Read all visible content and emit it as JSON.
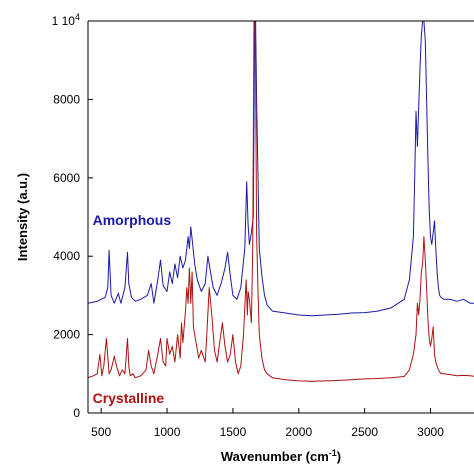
{
  "chart_data": {
    "type": "line",
    "title": "",
    "xlabel": "Wavenumber (cm",
    "xlabel_sup": "-1",
    "xlabel_close": ")",
    "ylabel": "Intensity (a.u.)",
    "xlim": [
      400,
      3330
    ],
    "ylim": [
      0,
      10000
    ],
    "grid": false,
    "legend": "none",
    "x_ticks": [
      {
        "value": 500,
        "label": "500"
      },
      {
        "value": 1000,
        "label": "1000"
      },
      {
        "value": 1500,
        "label": "1500"
      },
      {
        "value": 2000,
        "label": "2000"
      },
      {
        "value": 2500,
        "label": "2500"
      },
      {
        "value": 3000,
        "label": "3000"
      }
    ],
    "y_ticks": [
      {
        "value": 0,
        "label": "0"
      },
      {
        "value": 2000,
        "label": "2000"
      },
      {
        "value": 4000,
        "label": "4000"
      },
      {
        "value": 6000,
        "label": "6000"
      },
      {
        "value": 8000,
        "label": "8000"
      },
      {
        "value": 10000,
        "label": "1 10",
        "sup": "4"
      }
    ],
    "series": [
      {
        "name": "Amorphous",
        "color": "#1a1aa6",
        "label_pos": {
          "x": 450,
          "y": 4800
        },
        "x": [
          400,
          470,
          500,
          530,
          550,
          560,
          575,
          600,
          630,
          650,
          680,
          700,
          710,
          730,
          760,
          800,
          850,
          880,
          900,
          930,
          950,
          970,
          1000,
          1020,
          1040,
          1060,
          1080,
          1100,
          1120,
          1140,
          1160,
          1170,
          1180,
          1195,
          1210,
          1230,
          1260,
          1290,
          1310,
          1330,
          1350,
          1380,
          1410,
          1440,
          1460,
          1480,
          1500,
          1530,
          1560,
          1590,
          1605,
          1615,
          1625,
          1640,
          1655,
          1660,
          1665,
          1672,
          1680,
          1700,
          1720,
          1740,
          1760,
          1800,
          1900,
          2000,
          2100,
          2200,
          2300,
          2400,
          2500,
          2600,
          2700,
          2800,
          2840,
          2870,
          2880,
          2890,
          2900,
          2910,
          2920,
          2930,
          2940,
          2950,
          2960,
          2970,
          2980,
          2990,
          3000,
          3010,
          3020,
          3030,
          3040,
          3050,
          3060,
          3070,
          3080,
          3100,
          3150,
          3200,
          3250,
          3300,
          3330
        ],
        "y": [
          2800,
          2850,
          2900,
          2950,
          3200,
          4150,
          3000,
          2800,
          3050,
          2800,
          3200,
          4100,
          3300,
          2950,
          2850,
          2900,
          3000,
          3300,
          2800,
          3400,
          3900,
          3250,
          3100,
          3600,
          3300,
          3800,
          3450,
          4000,
          3700,
          3900,
          4500,
          4200,
          4750,
          4300,
          3800,
          3400,
          3100,
          3300,
          4000,
          3600,
          3200,
          3000,
          3300,
          3700,
          4100,
          3500,
          3000,
          2900,
          3200,
          4200,
          5900,
          4800,
          4300,
          4600,
          5000,
          7500,
          10000,
          10000,
          8000,
          4200,
          3500,
          3000,
          2750,
          2600,
          2550,
          2500,
          2480,
          2500,
          2520,
          2550,
          2560,
          2600,
          2680,
          2900,
          3400,
          4500,
          6000,
          7700,
          6800,
          7800,
          8800,
          9600,
          10000,
          10000,
          9500,
          8000,
          6500,
          5200,
          4500,
          4300,
          4600,
          4900,
          4200,
          3600,
          3200,
          3000,
          2950,
          2900,
          2900,
          2850,
          2900,
          2800,
          2800
        ]
      },
      {
        "name": "Crystalline",
        "color": "#b01010",
        "label_pos": {
          "x": 450,
          "y": 250
        },
        "x": [
          400,
          440,
          470,
          490,
          505,
          520,
          540,
          560,
          575,
          600,
          620,
          640,
          660,
          680,
          700,
          710,
          720,
          740,
          760,
          800,
          840,
          860,
          880,
          900,
          930,
          950,
          970,
          990,
          1000,
          1020,
          1040,
          1060,
          1080,
          1100,
          1110,
          1120,
          1140,
          1150,
          1160,
          1170,
          1180,
          1190,
          1200,
          1220,
          1240,
          1260,
          1290,
          1300,
          1320,
          1340,
          1360,
          1380,
          1400,
          1420,
          1440,
          1460,
          1480,
          1500,
          1520,
          1540,
          1560,
          1580,
          1600,
          1610,
          1615,
          1625,
          1640,
          1650,
          1660,
          1670,
          1680,
          1690,
          1700,
          1720,
          1740,
          1760,
          1800,
          1900,
          2000,
          2100,
          2200,
          2300,
          2400,
          2500,
          2600,
          2700,
          2800,
          2840,
          2870,
          2890,
          2900,
          2910,
          2920,
          2930,
          2940,
          2950,
          2960,
          2970,
          2980,
          2990,
          3000,
          3010,
          3020,
          3030,
          3040,
          3050,
          3060,
          3080,
          3100,
          3150,
          3200,
          3250,
          3300,
          3330
        ],
        "y": [
          900,
          950,
          1000,
          1500,
          950,
          1200,
          1900,
          1000,
          1100,
          1450,
          1150,
          950,
          1100,
          1000,
          1900,
          1200,
          950,
          1000,
          900,
          950,
          1100,
          1600,
          1200,
          1000,
          1500,
          1900,
          1300,
          1200,
          1900,
          1500,
          1700,
          1300,
          2000,
          1400,
          2300,
          1800,
          2600,
          3200,
          2800,
          3700,
          2800,
          3600,
          2200,
          1800,
          1400,
          1600,
          1300,
          1900,
          3200,
          2500,
          1600,
          1300,
          1800,
          2300,
          1700,
          1300,
          1500,
          2000,
          1300,
          1000,
          1200,
          2000,
          3400,
          2500,
          3100,
          2900,
          2300,
          4200,
          10000,
          10000,
          4600,
          3200,
          2000,
          1400,
          1100,
          1000,
          900,
          850,
          820,
          810,
          820,
          830,
          850,
          870,
          880,
          900,
          930,
          1100,
          1500,
          2000,
          2800,
          2500,
          2900,
          3600,
          3800,
          4500,
          3900,
          3200,
          2400,
          1900,
          1700,
          1900,
          2200,
          1500,
          1300,
          1200,
          1100,
          1000,
          1000,
          980,
          950,
          960,
          950,
          940
        ]
      }
    ]
  }
}
